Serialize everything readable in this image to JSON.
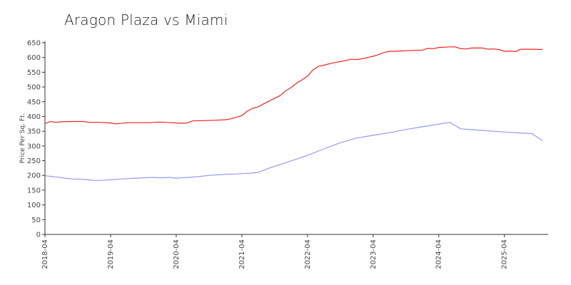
{
  "chart_data": {
    "type": "line",
    "title": "Aragon Plaza vs Miami",
    "xlabel": "",
    "ylabel": "Price Per Sq. Ft.",
    "ylim": [
      0,
      650
    ],
    "yticks": [
      0,
      50,
      100,
      150,
      200,
      250,
      300,
      350,
      400,
      450,
      500,
      550,
      600,
      650
    ],
    "xlim": [
      "2018-04",
      "2025-12"
    ],
    "xticks": [
      "2018-04",
      "2019-04",
      "2020-04",
      "2021-04",
      "2022-04",
      "2023-04",
      "2024-04",
      "2025-04"
    ],
    "grid": false,
    "legend": "none",
    "series": [
      {
        "color": "#ee2222",
        "points": [
          [
            "2018-04",
            376
          ],
          [
            "2018-05",
            383
          ],
          [
            "2018-06",
            380
          ],
          [
            "2018-07",
            382
          ],
          [
            "2018-09",
            383
          ],
          [
            "2018-11",
            383
          ],
          [
            "2018-12",
            380
          ],
          [
            "2019-02",
            380
          ],
          [
            "2019-04",
            378
          ],
          [
            "2019-05",
            375
          ],
          [
            "2019-07",
            379
          ],
          [
            "2019-09",
            379
          ],
          [
            "2019-11",
            379
          ],
          [
            "2020-01",
            381
          ],
          [
            "2020-03",
            379
          ],
          [
            "2020-05",
            377
          ],
          [
            "2020-06",
            378
          ],
          [
            "2020-07",
            385
          ],
          [
            "2020-09",
            386
          ],
          [
            "2020-11",
            387
          ],
          [
            "2021-01",
            389
          ],
          [
            "2021-02",
            392
          ],
          [
            "2021-04",
            403
          ],
          [
            "2021-05",
            418
          ],
          [
            "2021-06",
            428
          ],
          [
            "2021-07",
            433
          ],
          [
            "2021-08",
            443
          ],
          [
            "2021-09",
            452
          ],
          [
            "2021-10",
            462
          ],
          [
            "2021-11",
            471
          ],
          [
            "2021-12",
            487
          ],
          [
            "2022-01",
            498
          ],
          [
            "2022-02",
            513
          ],
          [
            "2022-03",
            524
          ],
          [
            "2022-04",
            537
          ],
          [
            "2022-05",
            558
          ],
          [
            "2022-06",
            570
          ],
          [
            "2022-07",
            574
          ],
          [
            "2022-08",
            579
          ],
          [
            "2022-09",
            583
          ],
          [
            "2022-10",
            586
          ],
          [
            "2022-11",
            590
          ],
          [
            "2022-12",
            594
          ],
          [
            "2023-01",
            593
          ],
          [
            "2023-02",
            596
          ],
          [
            "2023-03",
            600
          ],
          [
            "2023-04",
            604
          ],
          [
            "2023-05",
            610
          ],
          [
            "2023-06",
            617
          ],
          [
            "2023-07",
            621
          ],
          [
            "2023-08",
            621
          ],
          [
            "2023-09",
            622
          ],
          [
            "2023-11",
            624
          ],
          [
            "2024-01",
            625
          ],
          [
            "2024-02",
            631
          ],
          [
            "2024-03",
            630
          ],
          [
            "2024-04",
            634
          ],
          [
            "2024-06",
            636
          ],
          [
            "2024-07",
            636
          ],
          [
            "2024-08",
            630
          ],
          [
            "2024-09",
            629
          ],
          [
            "2024-10",
            632
          ],
          [
            "2024-12",
            632
          ],
          [
            "2025-01",
            628
          ],
          [
            "2025-02",
            629
          ],
          [
            "2025-03",
            627
          ],
          [
            "2025-04",
            621
          ],
          [
            "2025-05",
            622
          ],
          [
            "2025-06",
            620
          ],
          [
            "2025-07",
            628
          ],
          [
            "2025-09",
            628
          ],
          [
            "2025-11",
            627
          ]
        ]
      },
      {
        "color": "#9999ee",
        "points": [
          [
            "2018-04",
            199
          ],
          [
            "2018-06",
            195
          ],
          [
            "2018-08",
            190
          ],
          [
            "2018-09",
            188
          ],
          [
            "2018-11",
            187
          ],
          [
            "2019-01",
            183
          ],
          [
            "2019-02",
            183
          ],
          [
            "2019-04",
            185
          ],
          [
            "2019-06",
            188
          ],
          [
            "2019-08",
            190
          ],
          [
            "2019-10",
            192
          ],
          [
            "2019-12",
            193
          ],
          [
            "2020-01",
            192
          ],
          [
            "2020-03",
            193
          ],
          [
            "2020-04",
            191
          ],
          [
            "2020-06",
            193
          ],
          [
            "2020-08",
            196
          ],
          [
            "2020-10",
            200
          ],
          [
            "2021-01",
            204
          ],
          [
            "2021-03",
            205
          ],
          [
            "2021-05",
            207
          ],
          [
            "2021-07",
            210
          ],
          [
            "2021-09",
            225
          ],
          [
            "2021-12",
            243
          ],
          [
            "2022-04",
            268
          ],
          [
            "2022-07",
            290
          ],
          [
            "2022-10",
            311
          ],
          [
            "2023-01",
            327
          ],
          [
            "2023-04",
            336
          ],
          [
            "2023-07",
            345
          ],
          [
            "2023-10",
            356
          ],
          [
            "2024-01",
            365
          ],
          [
            "2024-03",
            371
          ],
          [
            "2024-06",
            380
          ],
          [
            "2024-08",
            358
          ],
          [
            "2024-11",
            354
          ],
          [
            "2025-02",
            350
          ],
          [
            "2025-05",
            346
          ],
          [
            "2025-07",
            344
          ],
          [
            "2025-09",
            342
          ],
          [
            "2025-11",
            318
          ]
        ]
      }
    ]
  }
}
